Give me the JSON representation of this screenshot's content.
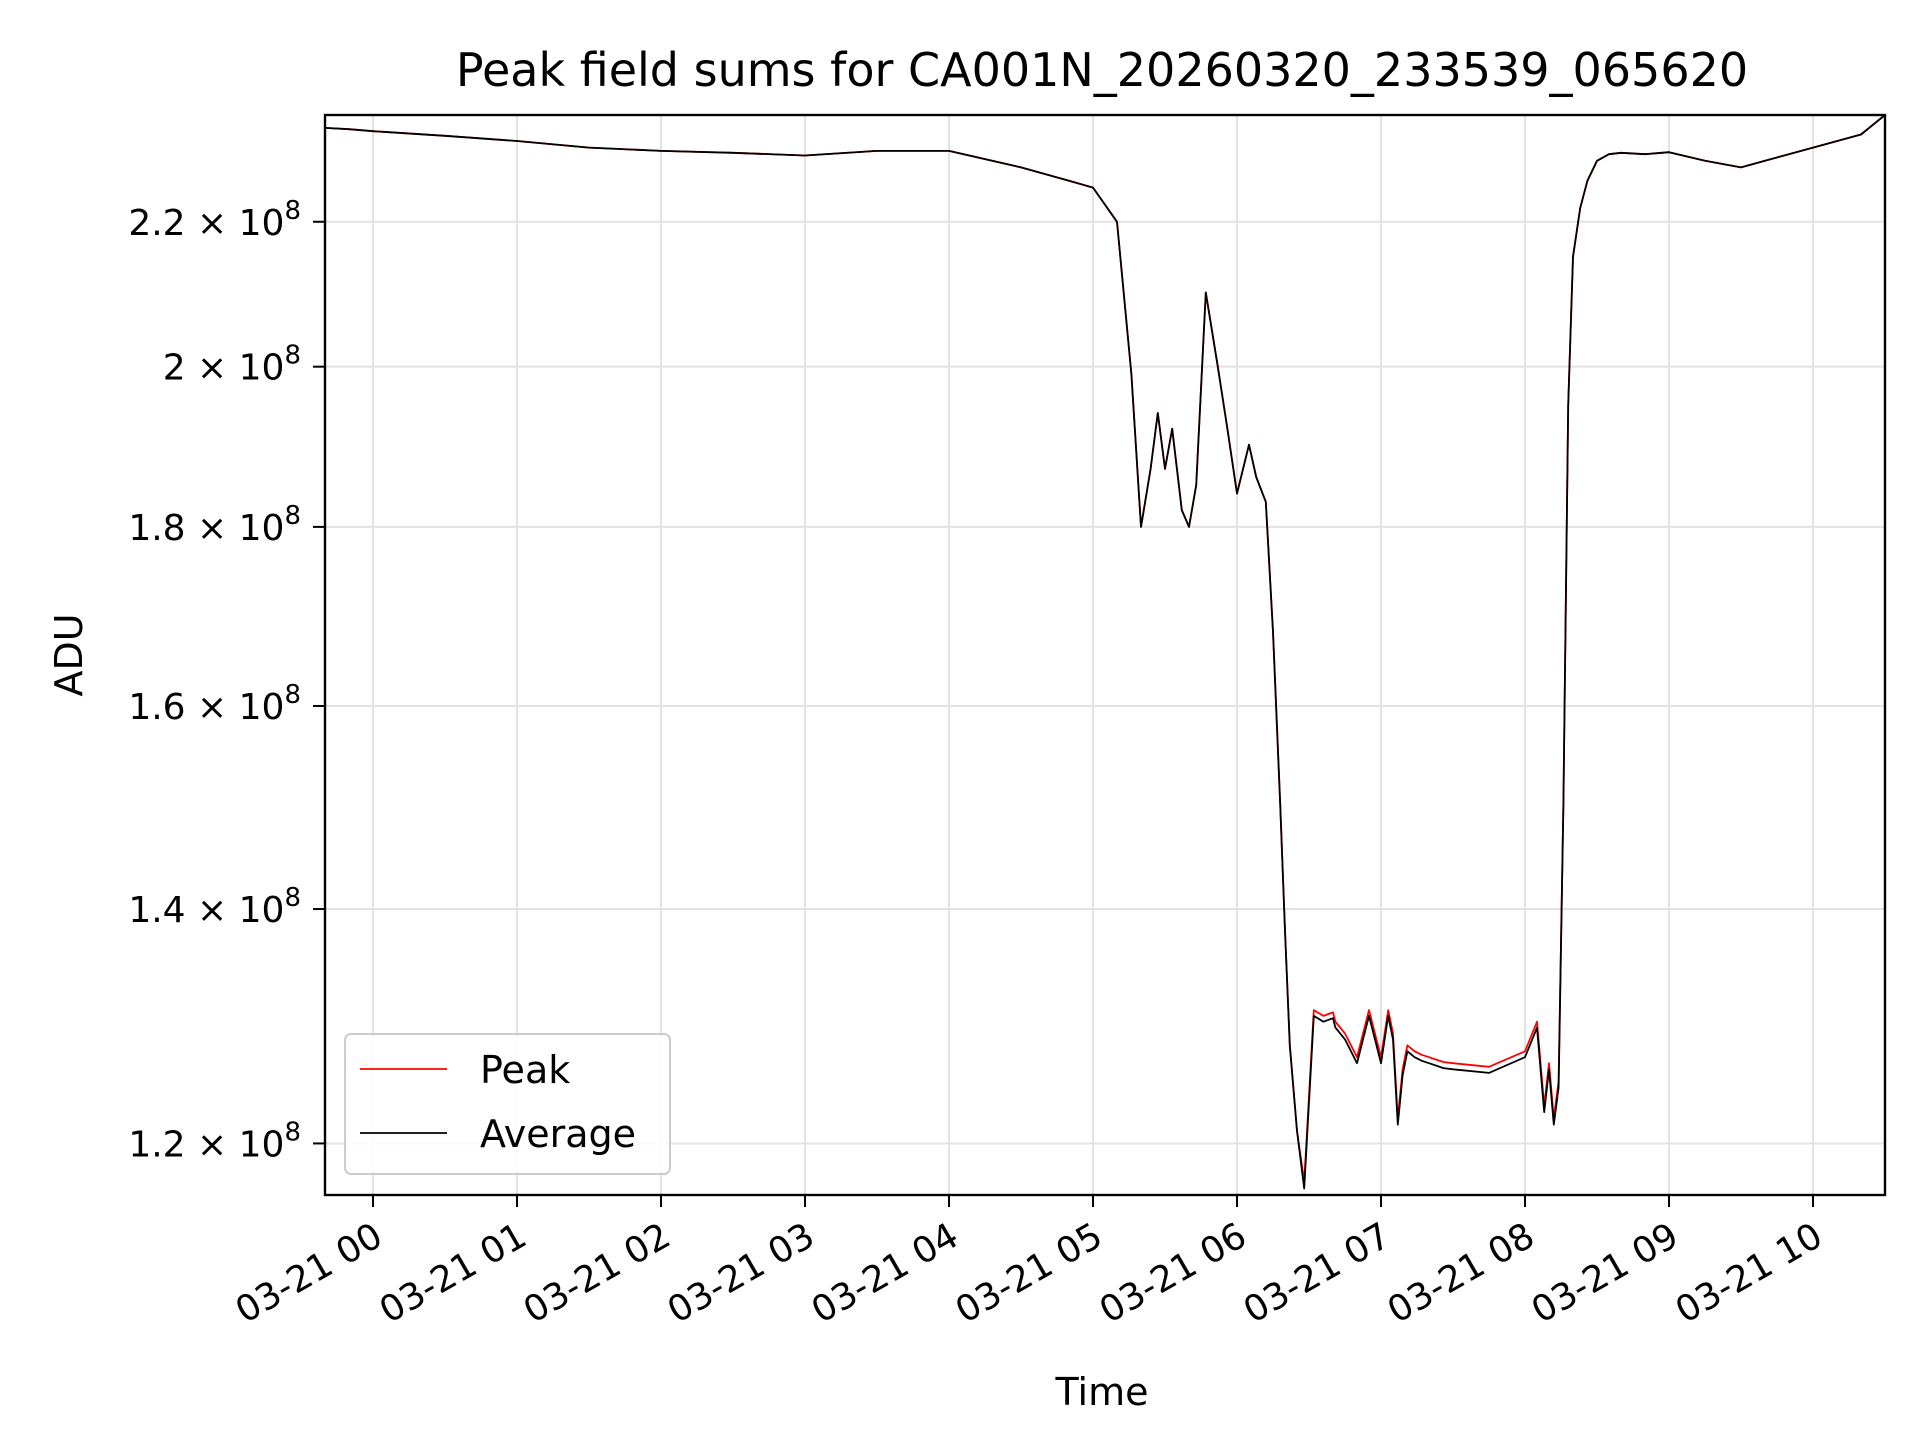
{
  "chart_data": {
    "type": "line",
    "title": "Peak field sums for CA001N_20260320_233539_065620",
    "xlabel": "Time",
    "ylabel": "ADU",
    "y_scale": "log",
    "grid": true,
    "legend_placement": "lower-left",
    "xlim": [
      "2026-03-20 23:40",
      "2026-03-21 10:30"
    ],
    "ylim": [
      116000000,
      236000000
    ],
    "x_ticks": [
      "03-21 00",
      "03-21 01",
      "03-21 02",
      "03-21 03",
      "03-21 04",
      "03-21 05",
      "03-21 06",
      "03-21 07",
      "03-21 08",
      "03-21 09",
      "03-21 10"
    ],
    "y_ticks": [
      {
        "value": 120000000,
        "mantissa": "1.2",
        "exponent": "8"
      },
      {
        "value": 140000000,
        "mantissa": "1.4",
        "exponent": "8"
      },
      {
        "value": 160000000,
        "mantissa": "1.6",
        "exponent": "8"
      },
      {
        "value": 180000000,
        "mantissa": "1.8",
        "exponent": "8"
      },
      {
        "value": 200000000,
        "mantissa": "2",
        "exponent": "8"
      },
      {
        "value": 220000000,
        "mantissa": "2.2",
        "exponent": "8"
      }
    ],
    "x": [
      "2026-03-20 23:40",
      "2026-03-20 23:50",
      "2026-03-21 00:00",
      "2026-03-21 00:30",
      "2026-03-21 01:00",
      "2026-03-21 01:30",
      "2026-03-21 02:00",
      "2026-03-21 02:30",
      "2026-03-21 03:00",
      "2026-03-21 03:30",
      "2026-03-21 04:00",
      "2026-03-21 04:30",
      "2026-03-21 04:50",
      "2026-03-21 05:00",
      "2026-03-21 05:10",
      "2026-03-21 05:16",
      "2026-03-21 05:20",
      "2026-03-21 05:24",
      "2026-03-21 05:27",
      "2026-03-21 05:30",
      "2026-03-21 05:33",
      "2026-03-21 05:37",
      "2026-03-21 05:40",
      "2026-03-21 05:43",
      "2026-03-21 05:47",
      "2026-03-21 05:52",
      "2026-03-21 05:56",
      "2026-03-21 06:00",
      "2026-03-21 06:05",
      "2026-03-21 06:08",
      "2026-03-21 06:12",
      "2026-03-21 06:15",
      "2026-03-21 06:18",
      "2026-03-21 06:20",
      "2026-03-21 06:22",
      "2026-03-21 06:25",
      "2026-03-21 06:28",
      "2026-03-21 06:32",
      "2026-03-21 06:36",
      "2026-03-21 06:40",
      "2026-03-21 06:41",
      "2026-03-21 06:45",
      "2026-03-21 06:50",
      "2026-03-21 06:55",
      "2026-03-21 07:00",
      "2026-03-21 07:03",
      "2026-03-21 07:05",
      "2026-03-21 07:07",
      "2026-03-21 07:09",
      "2026-03-21 07:11",
      "2026-03-21 07:14",
      "2026-03-21 07:17",
      "2026-03-21 07:20",
      "2026-03-21 07:23",
      "2026-03-21 07:26",
      "2026-03-21 07:30",
      "2026-03-21 07:45",
      "2026-03-21 08:00",
      "2026-03-21 08:05",
      "2026-03-21 08:08",
      "2026-03-21 08:10",
      "2026-03-21 08:12",
      "2026-03-21 08:14",
      "2026-03-21 08:16",
      "2026-03-21 08:18",
      "2026-03-21 08:20",
      "2026-03-21 08:23",
      "2026-03-21 08:26",
      "2026-03-21 08:30",
      "2026-03-21 08:35",
      "2026-03-21 08:40",
      "2026-03-21 08:50",
      "2026-03-21 09:00",
      "2026-03-21 09:15",
      "2026-03-21 09:30",
      "2026-03-21 09:40",
      "2026-03-21 10:00",
      "2026-03-21 10:20",
      "2026-03-21 10:30"
    ],
    "series": [
      {
        "name": "Peak",
        "color": "#ff0000",
        "values": [
          234000000,
          233800000,
          233500000,
          232800000,
          232000000,
          231000000,
          230500000,
          230200000,
          229800000,
          230500000,
          230500000,
          228000000,
          226000000,
          225000000,
          220000000,
          199000000,
          180000000,
          187000000,
          194000000,
          187000000,
          192000000,
          182000000,
          180000000,
          185000000,
          210000000,
          200000000,
          192000000,
          184000000,
          190000000,
          186000000,
          183000000,
          168000000,
          150000000,
          138000000,
          128000000,
          121000000,
          117000000,
          131000000,
          130500000,
          130800000,
          130000000,
          129000000,
          127000000,
          131000000,
          127000000,
          131000000,
          129000000,
          122000000,
          126000000,
          128000000,
          127500000,
          127200000,
          127000000,
          126800000,
          126600000,
          126500000,
          126200000,
          127500000,
          130000000,
          123000000,
          126500000,
          122000000,
          125000000,
          150000000,
          195000000,
          215000000,
          222000000,
          226000000,
          229000000,
          230000000,
          230200000,
          230000000,
          230300000,
          229000000,
          228000000,
          229000000,
          231000000,
          233000000,
          236000000
        ]
      },
      {
        "name": "Average",
        "color": "#000000",
        "values": [
          234000000,
          233800000,
          233500000,
          232800000,
          232000000,
          231000000,
          230500000,
          230200000,
          229800000,
          230500000,
          230500000,
          228000000,
          226000000,
          225000000,
          220000000,
          199000000,
          180000000,
          187000000,
          194000000,
          187000000,
          192000000,
          182000000,
          180000000,
          185000000,
          210000000,
          200000000,
          192000000,
          184000000,
          190000000,
          186000000,
          183000000,
          168000000,
          150000000,
          138000000,
          128000000,
          121000000,
          116500000,
          130500000,
          130000000,
          130300000,
          129500000,
          128500000,
          126500000,
          130500000,
          126500000,
          130500000,
          128500000,
          121500000,
          125500000,
          127500000,
          127000000,
          126700000,
          126500000,
          126300000,
          126100000,
          126000000,
          125700000,
          127000000,
          129500000,
          122500000,
          126000000,
          121500000,
          124500000,
          150000000,
          195000000,
          215000000,
          222000000,
          226000000,
          229000000,
          230000000,
          230200000,
          230000000,
          230300000,
          229000000,
          228000000,
          229000000,
          231000000,
          233000000,
          236000000
        ]
      }
    ]
  }
}
